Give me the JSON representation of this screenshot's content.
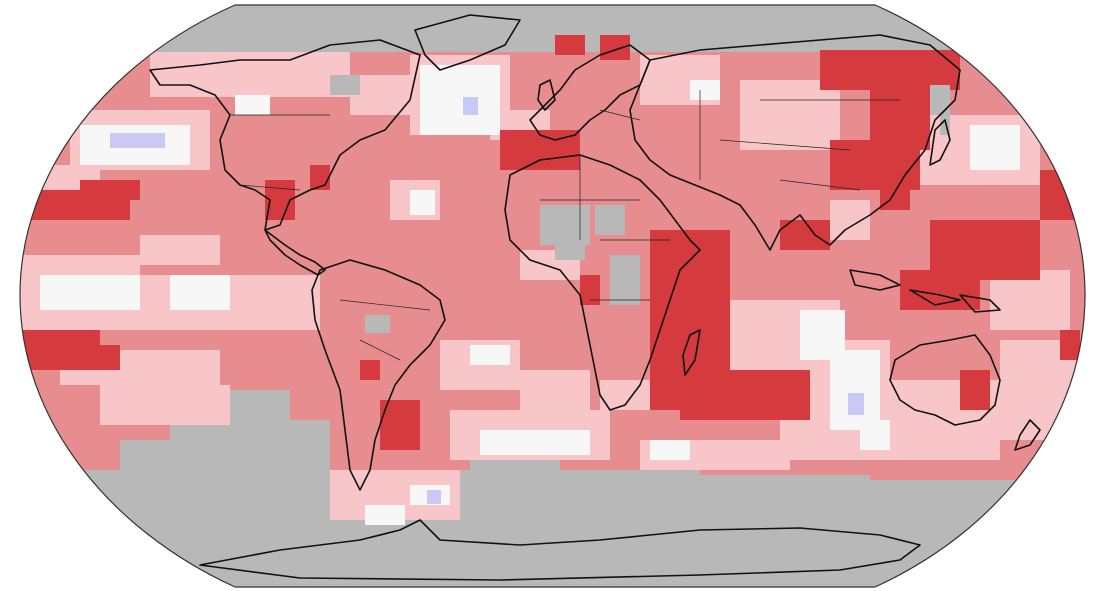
{
  "map": {
    "projection": "Robinson",
    "category_colors": {
      "much_warmer_than_average": "#d43a3e",
      "warmer_than_average": "#e78d8f",
      "slightly_warmer": "#f8c6c8",
      "near_average": "#f7f7f7",
      "cooler_than_average": "#c9c9f5",
      "no_data": "#b8b8b8"
    },
    "ocean_background": "#e78d8f",
    "outline_color": "#333333",
    "coastline_color": "#111111"
  }
}
